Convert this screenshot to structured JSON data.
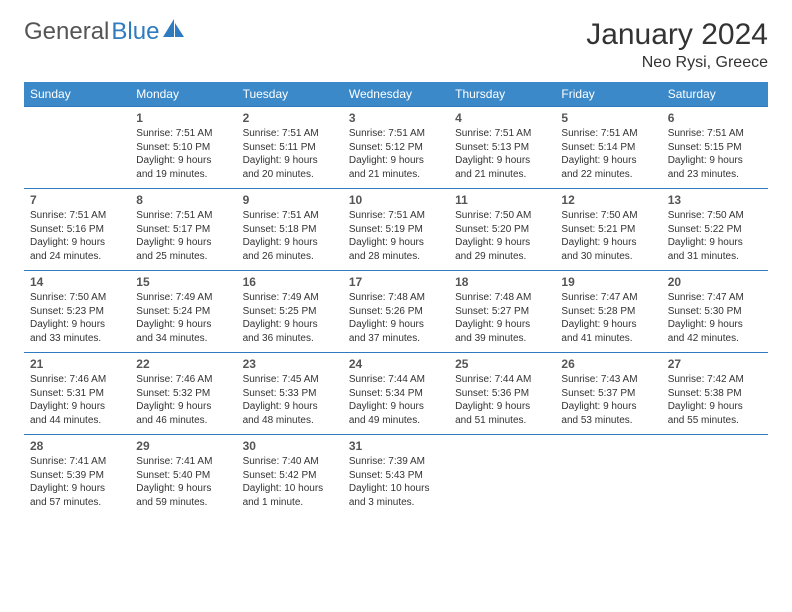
{
  "logo": {
    "word1": "General",
    "word2": "Blue"
  },
  "title": "January 2024",
  "location": "Neo Rysi, Greece",
  "colors": {
    "header_bg": "#3b89c9",
    "border": "#2f7bbf",
    "text": "#333333",
    "logo_gray": "#5a5a5a",
    "logo_blue": "#2f7bbf",
    "background": "#ffffff"
  },
  "fonts": {
    "title_size_pt": 22,
    "location_size_pt": 13,
    "day_header_size_pt": 9,
    "daynum_size_pt": 9,
    "body_size_pt": 7.5
  },
  "day_names": [
    "Sunday",
    "Monday",
    "Tuesday",
    "Wednesday",
    "Thursday",
    "Friday",
    "Saturday"
  ],
  "weeks": [
    [
      null,
      {
        "n": "1",
        "sunrise": "Sunrise: 7:51 AM",
        "sunset": "Sunset: 5:10 PM",
        "dl1": "Daylight: 9 hours",
        "dl2": "and 19 minutes."
      },
      {
        "n": "2",
        "sunrise": "Sunrise: 7:51 AM",
        "sunset": "Sunset: 5:11 PM",
        "dl1": "Daylight: 9 hours",
        "dl2": "and 20 minutes."
      },
      {
        "n": "3",
        "sunrise": "Sunrise: 7:51 AM",
        "sunset": "Sunset: 5:12 PM",
        "dl1": "Daylight: 9 hours",
        "dl2": "and 21 minutes."
      },
      {
        "n": "4",
        "sunrise": "Sunrise: 7:51 AM",
        "sunset": "Sunset: 5:13 PM",
        "dl1": "Daylight: 9 hours",
        "dl2": "and 21 minutes."
      },
      {
        "n": "5",
        "sunrise": "Sunrise: 7:51 AM",
        "sunset": "Sunset: 5:14 PM",
        "dl1": "Daylight: 9 hours",
        "dl2": "and 22 minutes."
      },
      {
        "n": "6",
        "sunrise": "Sunrise: 7:51 AM",
        "sunset": "Sunset: 5:15 PM",
        "dl1": "Daylight: 9 hours",
        "dl2": "and 23 minutes."
      }
    ],
    [
      {
        "n": "7",
        "sunrise": "Sunrise: 7:51 AM",
        "sunset": "Sunset: 5:16 PM",
        "dl1": "Daylight: 9 hours",
        "dl2": "and 24 minutes."
      },
      {
        "n": "8",
        "sunrise": "Sunrise: 7:51 AM",
        "sunset": "Sunset: 5:17 PM",
        "dl1": "Daylight: 9 hours",
        "dl2": "and 25 minutes."
      },
      {
        "n": "9",
        "sunrise": "Sunrise: 7:51 AM",
        "sunset": "Sunset: 5:18 PM",
        "dl1": "Daylight: 9 hours",
        "dl2": "and 26 minutes."
      },
      {
        "n": "10",
        "sunrise": "Sunrise: 7:51 AM",
        "sunset": "Sunset: 5:19 PM",
        "dl1": "Daylight: 9 hours",
        "dl2": "and 28 minutes."
      },
      {
        "n": "11",
        "sunrise": "Sunrise: 7:50 AM",
        "sunset": "Sunset: 5:20 PM",
        "dl1": "Daylight: 9 hours",
        "dl2": "and 29 minutes."
      },
      {
        "n": "12",
        "sunrise": "Sunrise: 7:50 AM",
        "sunset": "Sunset: 5:21 PM",
        "dl1": "Daylight: 9 hours",
        "dl2": "and 30 minutes."
      },
      {
        "n": "13",
        "sunrise": "Sunrise: 7:50 AM",
        "sunset": "Sunset: 5:22 PM",
        "dl1": "Daylight: 9 hours",
        "dl2": "and 31 minutes."
      }
    ],
    [
      {
        "n": "14",
        "sunrise": "Sunrise: 7:50 AM",
        "sunset": "Sunset: 5:23 PM",
        "dl1": "Daylight: 9 hours",
        "dl2": "and 33 minutes."
      },
      {
        "n": "15",
        "sunrise": "Sunrise: 7:49 AM",
        "sunset": "Sunset: 5:24 PM",
        "dl1": "Daylight: 9 hours",
        "dl2": "and 34 minutes."
      },
      {
        "n": "16",
        "sunrise": "Sunrise: 7:49 AM",
        "sunset": "Sunset: 5:25 PM",
        "dl1": "Daylight: 9 hours",
        "dl2": "and 36 minutes."
      },
      {
        "n": "17",
        "sunrise": "Sunrise: 7:48 AM",
        "sunset": "Sunset: 5:26 PM",
        "dl1": "Daylight: 9 hours",
        "dl2": "and 37 minutes."
      },
      {
        "n": "18",
        "sunrise": "Sunrise: 7:48 AM",
        "sunset": "Sunset: 5:27 PM",
        "dl1": "Daylight: 9 hours",
        "dl2": "and 39 minutes."
      },
      {
        "n": "19",
        "sunrise": "Sunrise: 7:47 AM",
        "sunset": "Sunset: 5:28 PM",
        "dl1": "Daylight: 9 hours",
        "dl2": "and 41 minutes."
      },
      {
        "n": "20",
        "sunrise": "Sunrise: 7:47 AM",
        "sunset": "Sunset: 5:30 PM",
        "dl1": "Daylight: 9 hours",
        "dl2": "and 42 minutes."
      }
    ],
    [
      {
        "n": "21",
        "sunrise": "Sunrise: 7:46 AM",
        "sunset": "Sunset: 5:31 PM",
        "dl1": "Daylight: 9 hours",
        "dl2": "and 44 minutes."
      },
      {
        "n": "22",
        "sunrise": "Sunrise: 7:46 AM",
        "sunset": "Sunset: 5:32 PM",
        "dl1": "Daylight: 9 hours",
        "dl2": "and 46 minutes."
      },
      {
        "n": "23",
        "sunrise": "Sunrise: 7:45 AM",
        "sunset": "Sunset: 5:33 PM",
        "dl1": "Daylight: 9 hours",
        "dl2": "and 48 minutes."
      },
      {
        "n": "24",
        "sunrise": "Sunrise: 7:44 AM",
        "sunset": "Sunset: 5:34 PM",
        "dl1": "Daylight: 9 hours",
        "dl2": "and 49 minutes."
      },
      {
        "n": "25",
        "sunrise": "Sunrise: 7:44 AM",
        "sunset": "Sunset: 5:36 PM",
        "dl1": "Daylight: 9 hours",
        "dl2": "and 51 minutes."
      },
      {
        "n": "26",
        "sunrise": "Sunrise: 7:43 AM",
        "sunset": "Sunset: 5:37 PM",
        "dl1": "Daylight: 9 hours",
        "dl2": "and 53 minutes."
      },
      {
        "n": "27",
        "sunrise": "Sunrise: 7:42 AM",
        "sunset": "Sunset: 5:38 PM",
        "dl1": "Daylight: 9 hours",
        "dl2": "and 55 minutes."
      }
    ],
    [
      {
        "n": "28",
        "sunrise": "Sunrise: 7:41 AM",
        "sunset": "Sunset: 5:39 PM",
        "dl1": "Daylight: 9 hours",
        "dl2": "and 57 minutes."
      },
      {
        "n": "29",
        "sunrise": "Sunrise: 7:41 AM",
        "sunset": "Sunset: 5:40 PM",
        "dl1": "Daylight: 9 hours",
        "dl2": "and 59 minutes."
      },
      {
        "n": "30",
        "sunrise": "Sunrise: 7:40 AM",
        "sunset": "Sunset: 5:42 PM",
        "dl1": "Daylight: 10 hours",
        "dl2": "and 1 minute."
      },
      {
        "n": "31",
        "sunrise": "Sunrise: 7:39 AM",
        "sunset": "Sunset: 5:43 PM",
        "dl1": "Daylight: 10 hours",
        "dl2": "and 3 minutes."
      },
      null,
      null,
      null
    ]
  ]
}
